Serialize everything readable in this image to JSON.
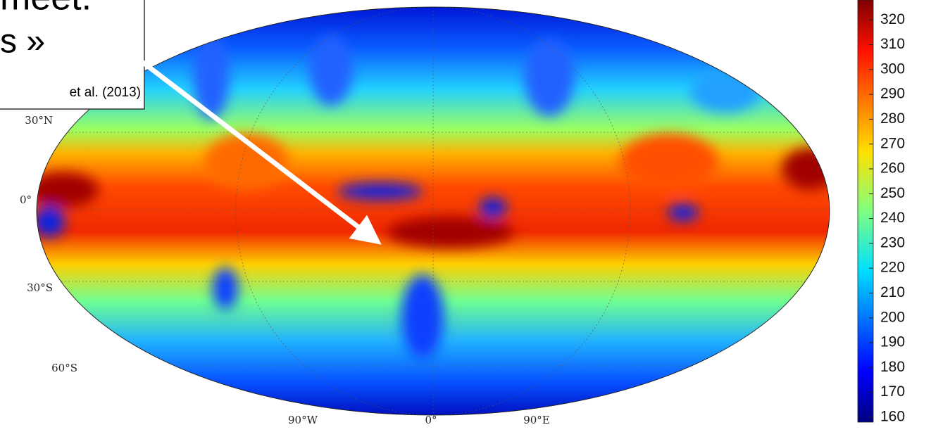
{
  "callout": {
    "lines": [
      "meet.",
      "s »"
    ],
    "citation": "et al. (2013)"
  },
  "map": {
    "lat_labels": [
      "30°N",
      "0°",
      "30°S",
      "60°S"
    ],
    "lon_labels": [
      "90°W",
      "0°",
      "90°E"
    ]
  },
  "colorbar": {
    "lim": [
      158,
      328
    ],
    "ticks": [
      160,
      170,
      180,
      190,
      200,
      210,
      220,
      230,
      240,
      250,
      260,
      270,
      280,
      290,
      300,
      310,
      320
    ]
  }
}
